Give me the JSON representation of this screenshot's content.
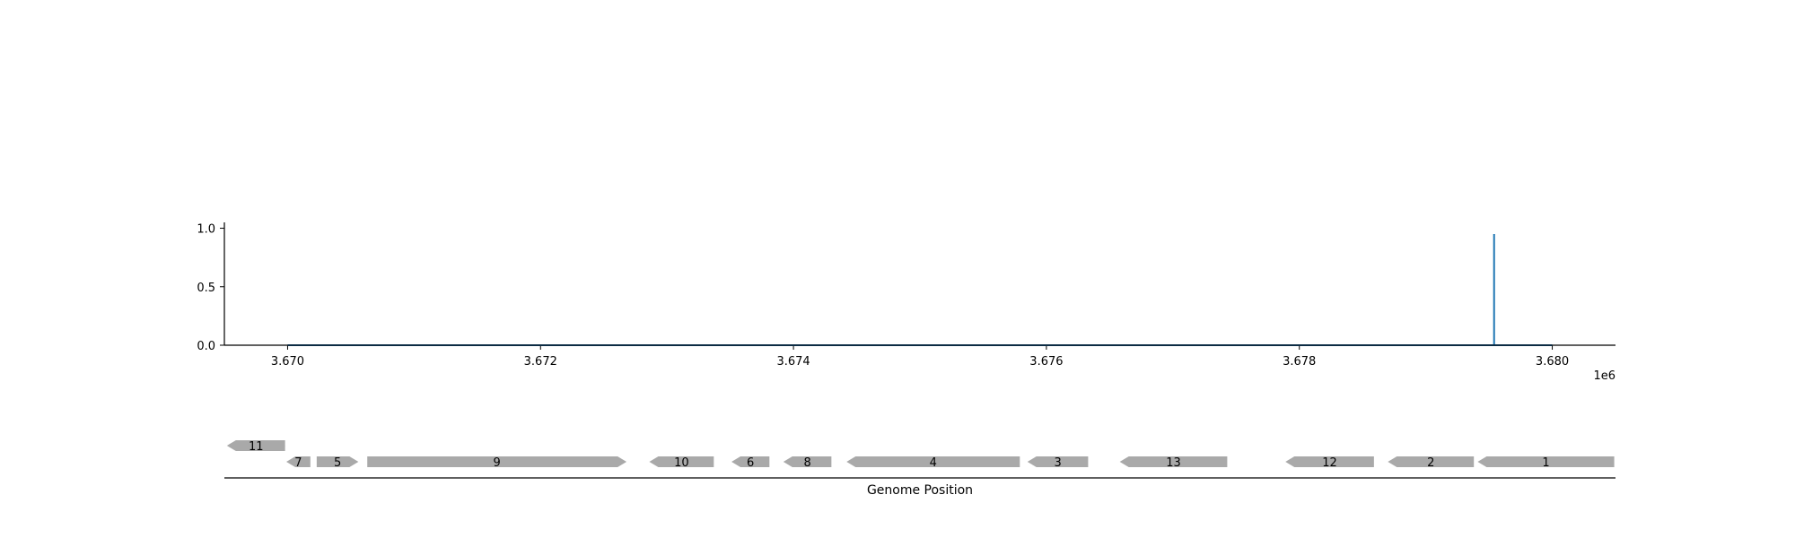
{
  "chart_data": [
    {
      "type": "line",
      "xlim": [
        3669500,
        3680500
      ],
      "ylim": [
        0,
        1.05
      ],
      "x_ticks": [
        3670000,
        3672000,
        3674000,
        3676000,
        3678000,
        3680000
      ],
      "x_tick_labels": [
        "3.670",
        "3.672",
        "3.674",
        "3.676",
        "3.678",
        "3.680"
      ],
      "x_offset_label": "1e6",
      "y_ticks": [
        0,
        0.5,
        1
      ],
      "y_tick_labels": [
        "0.0",
        "0.5",
        "1.0"
      ],
      "series": [
        {
          "color": "#1f77b4",
          "x": [
            3670000,
            3679540,
            3679540,
            3679540,
            3679550,
            3680000
          ],
          "y": [
            0,
            0,
            0.95,
            0,
            0,
            0
          ]
        }
      ]
    },
    {
      "type": "gene-map",
      "xlabel": "Genome Position",
      "xlim": [
        3669500,
        3680500
      ],
      "gene_color": "#a9a9a9",
      "genes": [
        {
          "label": "11",
          "start": 3669520,
          "end": 3669980,
          "strand": "-",
          "row": 1
        },
        {
          "label": "7",
          "start": 3669990,
          "end": 3670180,
          "strand": "-",
          "row": 0
        },
        {
          "label": "5",
          "start": 3670230,
          "end": 3670560,
          "strand": "+",
          "row": 0
        },
        {
          "label": "9",
          "start": 3670630,
          "end": 3672680,
          "strand": "+",
          "row": 0
        },
        {
          "label": "10",
          "start": 3672860,
          "end": 3673370,
          "strand": "-",
          "row": 0
        },
        {
          "label": "6",
          "start": 3673510,
          "end": 3673810,
          "strand": "-",
          "row": 0
        },
        {
          "label": "8",
          "start": 3673920,
          "end": 3674300,
          "strand": "-",
          "row": 0
        },
        {
          "label": "4",
          "start": 3674420,
          "end": 3675790,
          "strand": "-",
          "row": 0
        },
        {
          "label": "3",
          "start": 3675850,
          "end": 3676330,
          "strand": "-",
          "row": 0
        },
        {
          "label": "13",
          "start": 3676580,
          "end": 3677430,
          "strand": "-",
          "row": 0
        },
        {
          "label": "12",
          "start": 3677890,
          "end": 3678590,
          "strand": "-",
          "row": 0
        },
        {
          "label": "2",
          "start": 3678700,
          "end": 3679380,
          "strand": "-",
          "row": 0
        },
        {
          "label": "1",
          "start": 3679410,
          "end": 3680490,
          "strand": "-",
          "row": 0
        }
      ]
    }
  ]
}
